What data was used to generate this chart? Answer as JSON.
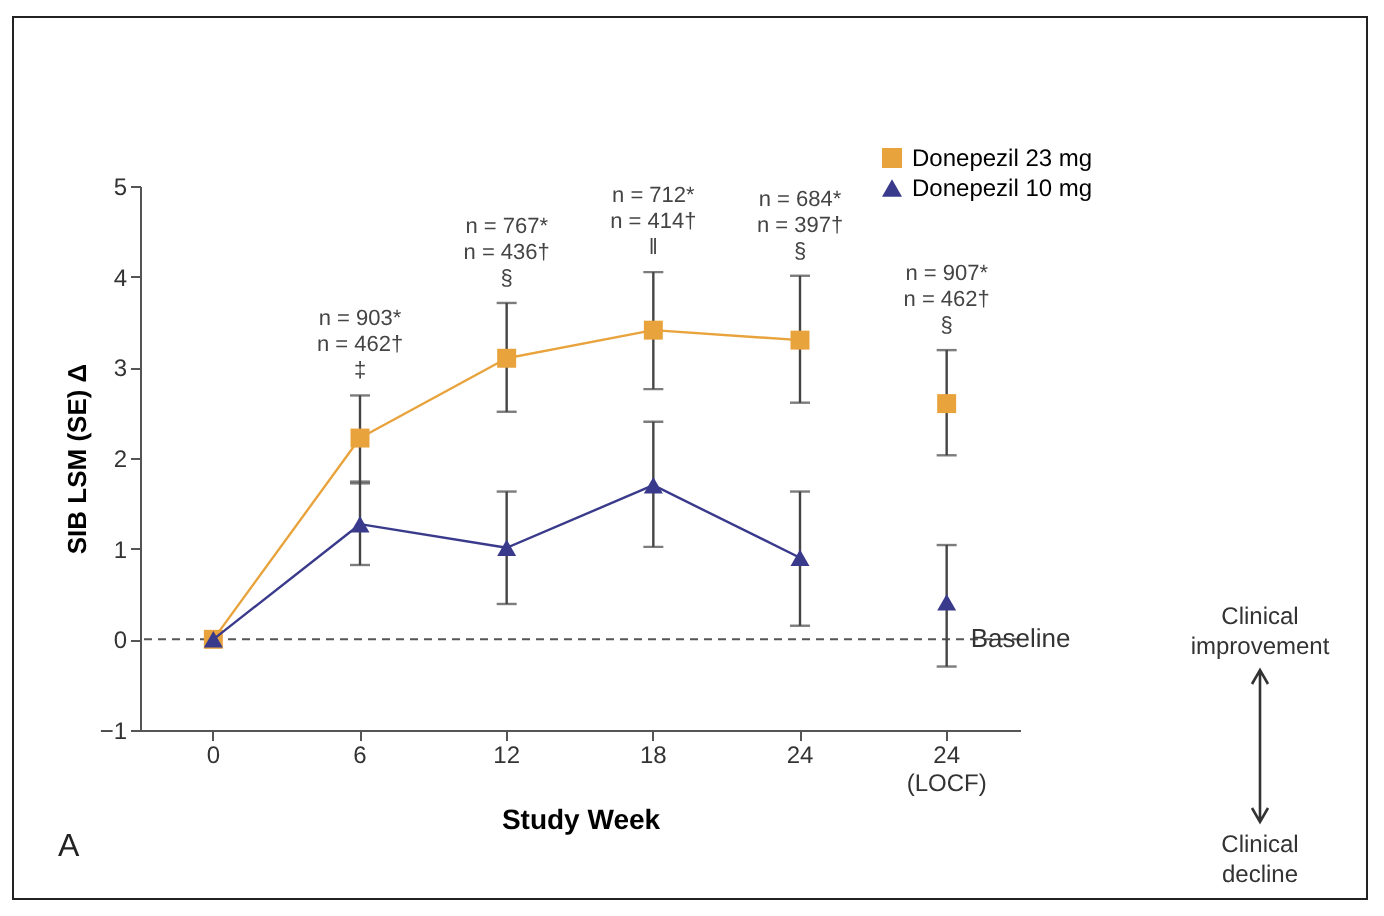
{
  "chart_data": {
    "type": "line",
    "xlabel": "Study Week",
    "ylabel": "SIB LSM (SE) Δ",
    "categories": [
      "0",
      "6",
      "12",
      "18",
      "24",
      "24 (LOCF)"
    ],
    "ylim": [
      -1,
      5
    ],
    "yticks": [
      -1,
      0,
      1,
      2,
      3,
      4,
      5
    ],
    "grid": false,
    "legend": "top right",
    "series": [
      {
        "name": "Donepezil 23 mg",
        "color": "#e8a33c",
        "marker": "square",
        "values": [
          0,
          2.22,
          3.1,
          3.41,
          3.3,
          null
        ],
        "errors": [
          null,
          [
            1.72,
            2.69
          ],
          [
            2.51,
            3.71
          ],
          [
            2.76,
            4.05
          ],
          [
            2.61,
            4.01
          ],
          null
        ]
      },
      {
        "name": "Donepezil 10 mg",
        "color": "#3a3a8c",
        "marker": "triangle",
        "values": [
          0,
          1.27,
          1.01,
          1.7,
          0.9,
          null
        ],
        "errors": [
          null,
          [
            0.82,
            1.74
          ],
          [
            0.39,
            1.63
          ],
          [
            1.02,
            2.4
          ],
          [
            0.15,
            1.63
          ],
          null
        ]
      },
      {
        "type": "scatter",
        "color": "#e8a33c",
        "marker": "square",
        "values": [
          null,
          null,
          null,
          null,
          null,
          2.6
        ],
        "errors": [
          null,
          null,
          null,
          null,
          null,
          [
            2.03,
            3.19
          ]
        ]
      },
      {
        "type": "scatter",
        "color": "#3a3a8c",
        "marker": "triangle",
        "values": [
          null,
          null,
          null,
          null,
          null,
          0.41
        ],
        "errors": [
          null,
          null,
          null,
          null,
          null,
          [
            -0.3,
            1.04
          ]
        ]
      }
    ],
    "ref_lines": [
      {
        "axis": "y",
        "value": 0,
        "label": "Baseline",
        "color": "#555555",
        "line_style": "dashed"
      }
    ],
    "annotations": [
      "Clinical improvement",
      "Clinical decline",
      "A",
      {
        "text": "n = 903*\nn = 462†\n‡",
        "x": "6",
        "y": 2.69
      },
      {
        "text": "n = 767*\nn = 436†\n§",
        "x": "12",
        "y": 3.71
      },
      {
        "text": "n = 712*\nn = 414†\n‖",
        "x": "18",
        "y": 4.05
      },
      {
        "text": "n = 684*\nn = 397†\n§",
        "x": "24",
        "y": 4.01
      },
      {
        "text": "n = 907*\nn = 462†\n§",
        "x": "24 (LOCF)",
        "y": 3.19
      }
    ]
  }
}
